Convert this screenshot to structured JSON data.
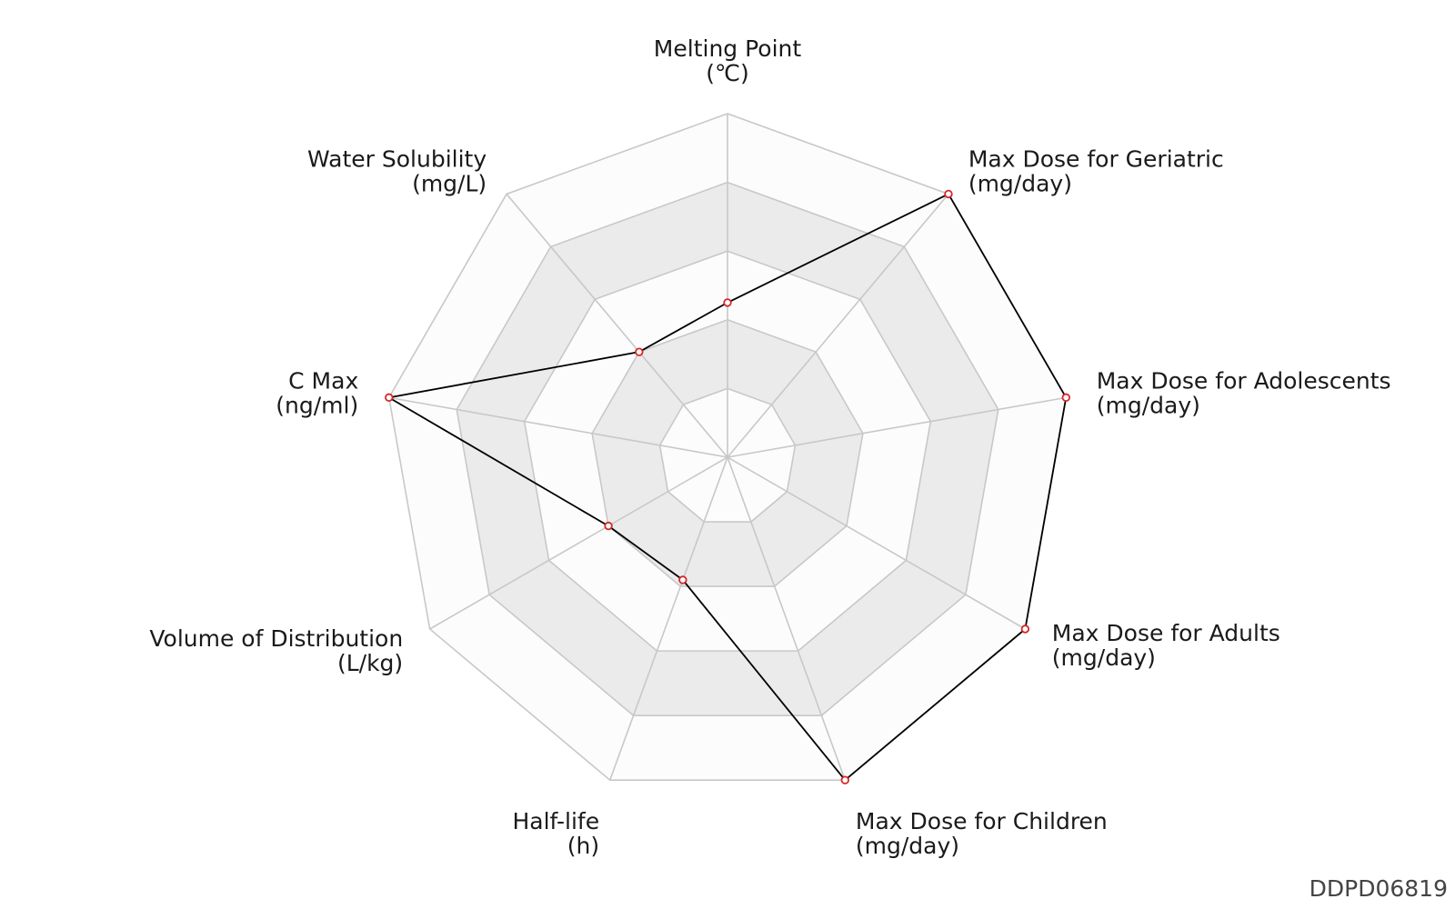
{
  "chart_data": {
    "type": "radar",
    "axes": [
      {
        "name": "Melting Point",
        "unit": "(℃)"
      },
      {
        "name": "Max Dose for Geriatric",
        "unit": "(mg/day)"
      },
      {
        "name": "Max Dose for Adolescents",
        "unit": "(mg/day)"
      },
      {
        "name": "Max Dose for Adults",
        "unit": "(mg/day)"
      },
      {
        "name": "Max Dose for Children",
        "unit": "(mg/day)"
      },
      {
        "name": "Half-life",
        "unit": "(h)"
      },
      {
        "name": "Volume of Distribution",
        "unit": "(L/kg)"
      },
      {
        "name": "C Max",
        "unit": "(ng/ml)"
      },
      {
        "name": "Water Solubility",
        "unit": "(mg/L)"
      }
    ],
    "rings": 5,
    "max": 1.0,
    "series": [
      {
        "values": [
          0.45,
          1.0,
          1.0,
          1.0,
          1.0,
          0.38,
          0.4,
          1.0,
          0.4
        ]
      }
    ],
    "colors": {
      "line": "#000000",
      "marker_edge": "#d62728",
      "marker_fill": "#ffffff",
      "grid": "#c8c8c8",
      "band_light": "#fcfcfc",
      "band_dark": "#ebebeb"
    }
  },
  "footer": {
    "id_text": "DDPD06819"
  }
}
